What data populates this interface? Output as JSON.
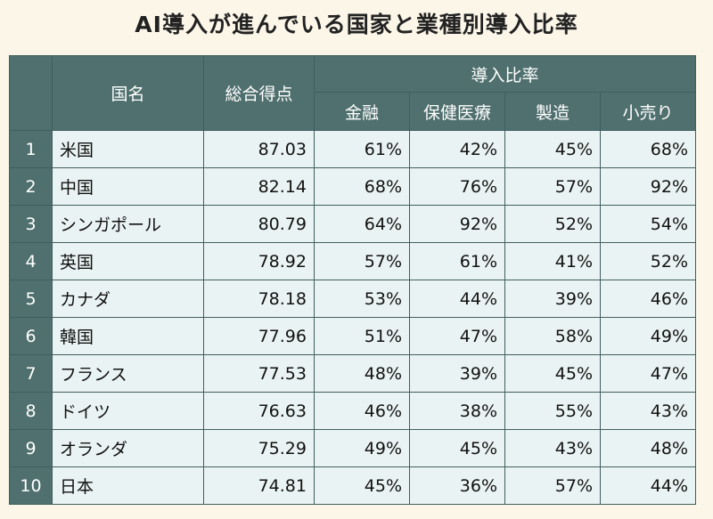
{
  "chart_data": {
    "type": "table",
    "title": "AI導入が進んでいる国家と業種別導入比率",
    "headers": {
      "country": "国名",
      "score": "総合得点",
      "group": "導入比率",
      "industries": [
        "金融",
        "保健医療",
        "製造",
        "小売り"
      ]
    },
    "rows": [
      {
        "rank": "1",
        "country": "米国",
        "score": "87.03",
        "values": [
          "61%",
          "42%",
          "45%",
          "68%"
        ]
      },
      {
        "rank": "2",
        "country": "中国",
        "score": "82.14",
        "values": [
          "68%",
          "76%",
          "57%",
          "92%"
        ]
      },
      {
        "rank": "3",
        "country": "シンガポール",
        "score": "80.79",
        "values": [
          "64%",
          "92%",
          "52%",
          "54%"
        ]
      },
      {
        "rank": "4",
        "country": "英国",
        "score": "78.92",
        "values": [
          "57%",
          "61%",
          "41%",
          "52%"
        ]
      },
      {
        "rank": "5",
        "country": "カナダ",
        "score": "78.18",
        "values": [
          "53%",
          "44%",
          "39%",
          "46%"
        ]
      },
      {
        "rank": "6",
        "country": "韓国",
        "score": "77.96",
        "values": [
          "51%",
          "47%",
          "58%",
          "49%"
        ]
      },
      {
        "rank": "7",
        "country": "フランス",
        "score": "77.53",
        "values": [
          "48%",
          "39%",
          "45%",
          "47%"
        ]
      },
      {
        "rank": "8",
        "country": "ドイツ",
        "score": "76.63",
        "values": [
          "46%",
          "38%",
          "55%",
          "43%"
        ]
      },
      {
        "rank": "9",
        "country": "オランダ",
        "score": "75.29",
        "values": [
          "49%",
          "45%",
          "43%",
          "48%"
        ]
      },
      {
        "rank": "10",
        "country": "日本",
        "score": "74.81",
        "values": [
          "45%",
          "36%",
          "57%",
          "44%"
        ]
      }
    ],
    "colors": {
      "header": "#4f706e",
      "cell": "#eaf3f3",
      "background": "#fbf6e8"
    }
  }
}
